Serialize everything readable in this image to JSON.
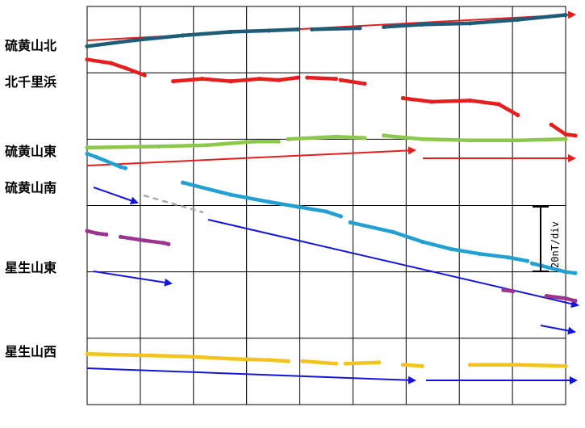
{
  "chart_data": {
    "type": "line",
    "title": "",
    "xlabel": "",
    "ylabel": "",
    "x_ticks": [
      "",
      "",
      "",
      "",
      "",
      "",
      "",
      "",
      "",
      ""
    ],
    "x_range": [
      0,
      100
    ],
    "y_range": [
      0,
      330
    ],
    "grid": true,
    "scale_bar": {
      "label": "20nT/div",
      "value_nT": 20
    },
    "series": [
      {
        "name": "硫黄山北",
        "color": "#1e5c78",
        "segments": [
          [
            [
              0,
              297
            ],
            [
              10,
              302
            ],
            [
              20,
              306
            ],
            [
              30,
              309
            ],
            [
              38,
              310
            ],
            [
              44,
              311
            ]
          ],
          [
            [
              47,
              311
            ],
            [
              57,
              312
            ]
          ],
          [
            [
              62,
              313
            ],
            [
              70,
              315
            ],
            [
              80,
              316
            ],
            [
              90,
              319
            ],
            [
              100,
              323
            ]
          ]
        ]
      },
      {
        "name": "北千里浜",
        "color": "#e61e1e",
        "segments": [
          [
            [
              0,
              286
            ],
            [
              5,
              283
            ],
            [
              8,
              279
            ],
            [
              12,
              273
            ]
          ],
          [
            [
              18,
              268
            ],
            [
              24,
              270
            ],
            [
              30,
              268
            ],
            [
              36,
              270
            ],
            [
              40,
              269
            ],
            [
              44,
              271
            ]
          ],
          [
            [
              46,
              271
            ],
            [
              52,
              270
            ]
          ],
          [
            [
              53,
              269
            ],
            [
              58,
              266
            ]
          ],
          [
            [
              66,
              254
            ],
            [
              72,
              251
            ],
            [
              80,
              252
            ],
            [
              86,
              249
            ],
            [
              90,
              240
            ]
          ],
          [
            [
              97,
              232
            ],
            [
              100,
              224
            ],
            [
              102,
              223
            ]
          ]
        ]
      },
      {
        "name": "硫黄山東",
        "color": "#8cc84b",
        "segments": [
          [
            [
              0,
              213
            ],
            [
              15,
              214
            ],
            [
              25,
              215
            ],
            [
              35,
              218
            ],
            [
              40,
              218
            ]
          ],
          [
            [
              42,
              220
            ],
            [
              52,
              222
            ],
            [
              58,
              221
            ]
          ],
          [
            [
              62,
              223
            ],
            [
              70,
              220
            ],
            [
              80,
              219
            ],
            [
              90,
              219
            ],
            [
              100,
              220
            ]
          ]
        ]
      },
      {
        "name": "硫黄山南",
        "color": "#23a0d2",
        "segments": [
          [
            [
              0,
              208
            ],
            [
              2,
              205
            ],
            [
              7,
              197
            ],
            [
              8,
              196
            ]
          ],
          [
            [
              20,
              184
            ],
            [
              30,
              174
            ],
            [
              38,
              168
            ],
            [
              44,
              164
            ],
            [
              50,
              160
            ],
            [
              53,
              156
            ]
          ],
          [
            [
              55,
              151
            ],
            [
              64,
              143
            ],
            [
              70,
              135
            ],
            [
              76,
              129
            ],
            [
              82,
              125
            ],
            [
              88,
              122
            ],
            [
              92,
              119
            ]
          ],
          [
            [
              93,
              117
            ],
            [
              95,
              115
            ],
            [
              100,
              110
            ],
            [
              102,
              109
            ]
          ]
        ]
      },
      {
        "name": "星生山東",
        "color": "#9b3391",
        "segments": [
          [
            [
              0,
              144
            ],
            [
              2,
              142
            ],
            [
              4,
              141
            ]
          ],
          [
            [
              7,
              139
            ],
            [
              12,
              136
            ],
            [
              16,
              134
            ],
            [
              17,
              133
            ]
          ],
          [
            [
              87,
              95
            ],
            [
              89,
              94
            ]
          ],
          [
            [
              96,
              90
            ],
            [
              100,
              88
            ],
            [
              102,
              86
            ]
          ]
        ]
      },
      {
        "name": "星生山西",
        "color": "#f5c31e",
        "segments": [
          [
            [
              0,
              42
            ],
            [
              10,
              41
            ],
            [
              20,
              40
            ],
            [
              30,
              38
            ],
            [
              38,
              37
            ],
            [
              42,
              36
            ]
          ],
          [
            [
              45,
              36
            ],
            [
              52,
              34
            ]
          ],
          [
            [
              54,
              34
            ],
            [
              61,
              35
            ]
          ],
          [
            [
              66,
              33
            ],
            [
              70,
              32
            ]
          ],
          [
            [
              80,
              33
            ],
            [
              90,
              33
            ],
            [
              100,
              32
            ]
          ]
        ]
      }
    ]
  }
}
